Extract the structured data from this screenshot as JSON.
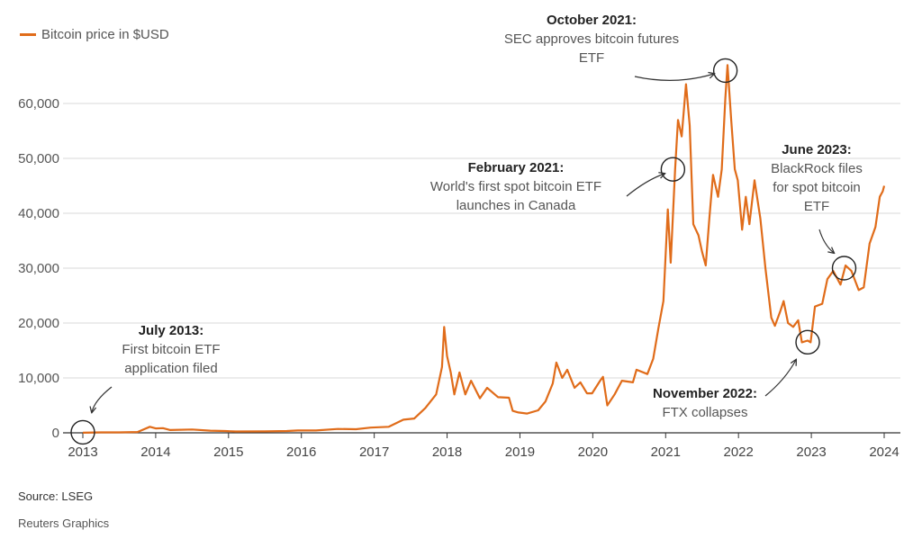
{
  "legend": {
    "label": "Bitcoin price in $USD"
  },
  "footer": {
    "source": "Source: LSEG",
    "credit": "Reuters Graphics"
  },
  "colors": {
    "line": "#e06c1a",
    "grid": "#d9d9d9",
    "axis": "#333333",
    "circle": "#222222"
  },
  "chart_data": {
    "type": "line",
    "title": "",
    "xlabel": "",
    "ylabel": "",
    "ylim": [
      0,
      60000
    ],
    "xlim": [
      2013,
      2024
    ],
    "yticks": [
      {
        "value": 0,
        "label": "0"
      },
      {
        "value": 10000,
        "label": "10,000"
      },
      {
        "value": 20000,
        "label": "20,000"
      },
      {
        "value": 30000,
        "label": "30,000"
      },
      {
        "value": 40000,
        "label": "40,000"
      },
      {
        "value": 50000,
        "label": "50,000"
      },
      {
        "value": 60000,
        "label": "60,000"
      }
    ],
    "xticks": [
      "2013",
      "2014",
      "2015",
      "2016",
      "2017",
      "2018",
      "2019",
      "2020",
      "2021",
      "2022",
      "2023",
      "2024"
    ],
    "grid": true,
    "legend_position": "top-left",
    "series": [
      {
        "name": "Bitcoin price in $USD",
        "points": [
          [
            2013.0,
            13
          ],
          [
            2013.25,
            90
          ],
          [
            2013.5,
            90
          ],
          [
            2013.75,
            140
          ],
          [
            2013.92,
            1100
          ],
          [
            2014.0,
            800
          ],
          [
            2014.1,
            850
          ],
          [
            2014.2,
            500
          ],
          [
            2014.5,
            600
          ],
          [
            2014.75,
            400
          ],
          [
            2014.95,
            320
          ],
          [
            2015.1,
            240
          ],
          [
            2015.5,
            260
          ],
          [
            2015.8,
            320
          ],
          [
            2015.95,
            430
          ],
          [
            2016.2,
            420
          ],
          [
            2016.5,
            700
          ],
          [
            2016.75,
            650
          ],
          [
            2016.95,
            950
          ],
          [
            2017.2,
            1100
          ],
          [
            2017.4,
            2400
          ],
          [
            2017.55,
            2600
          ],
          [
            2017.7,
            4500
          ],
          [
            2017.85,
            7000
          ],
          [
            2017.93,
            12000
          ],
          [
            2017.96,
            19300
          ],
          [
            2018.0,
            14000
          ],
          [
            2018.05,
            11000
          ],
          [
            2018.1,
            7000
          ],
          [
            2018.17,
            11000
          ],
          [
            2018.25,
            7000
          ],
          [
            2018.33,
            9500
          ],
          [
            2018.45,
            6300
          ],
          [
            2018.55,
            8200
          ],
          [
            2018.7,
            6500
          ],
          [
            2018.85,
            6400
          ],
          [
            2018.9,
            4000
          ],
          [
            2018.98,
            3700
          ],
          [
            2019.1,
            3500
          ],
          [
            2019.25,
            4100
          ],
          [
            2019.35,
            5700
          ],
          [
            2019.45,
            9000
          ],
          [
            2019.5,
            12800
          ],
          [
            2019.58,
            10000
          ],
          [
            2019.65,
            11500
          ],
          [
            2019.75,
            8200
          ],
          [
            2019.83,
            9200
          ],
          [
            2019.92,
            7200
          ],
          [
            2019.99,
            7200
          ],
          [
            2020.1,
            9500
          ],
          [
            2020.14,
            10200
          ],
          [
            2020.2,
            5000
          ],
          [
            2020.3,
            7000
          ],
          [
            2020.4,
            9500
          ],
          [
            2020.55,
            9200
          ],
          [
            2020.6,
            11500
          ],
          [
            2020.75,
            10700
          ],
          [
            2020.83,
            13500
          ],
          [
            2020.9,
            19000
          ],
          [
            2020.97,
            24000
          ],
          [
            2021.03,
            40700
          ],
          [
            2021.07,
            31000
          ],
          [
            2021.13,
            48000
          ],
          [
            2021.17,
            57000
          ],
          [
            2021.22,
            54000
          ],
          [
            2021.28,
            63500
          ],
          [
            2021.33,
            56000
          ],
          [
            2021.38,
            38000
          ],
          [
            2021.45,
            36000
          ],
          [
            2021.5,
            33000
          ],
          [
            2021.55,
            30500
          ],
          [
            2021.6,
            39000
          ],
          [
            2021.65,
            47000
          ],
          [
            2021.72,
            43000
          ],
          [
            2021.77,
            48000
          ],
          [
            2021.82,
            61000
          ],
          [
            2021.85,
            67000
          ],
          [
            2021.9,
            57000
          ],
          [
            2021.95,
            48000
          ],
          [
            2021.99,
            46000
          ],
          [
            2022.05,
            37000
          ],
          [
            2022.1,
            43000
          ],
          [
            2022.15,
            38000
          ],
          [
            2022.22,
            46000
          ],
          [
            2022.3,
            39000
          ],
          [
            2022.37,
            30000
          ],
          [
            2022.45,
            21000
          ],
          [
            2022.5,
            19500
          ],
          [
            2022.57,
            22000
          ],
          [
            2022.62,
            24000
          ],
          [
            2022.68,
            20000
          ],
          [
            2022.75,
            19300
          ],
          [
            2022.82,
            20500
          ],
          [
            2022.87,
            16500
          ],
          [
            2022.95,
            16800
          ],
          [
            2022.99,
            16500
          ],
          [
            2023.05,
            23000
          ],
          [
            2023.15,
            23500
          ],
          [
            2023.22,
            28000
          ],
          [
            2023.3,
            29500
          ],
          [
            2023.4,
            27000
          ],
          [
            2023.47,
            30500
          ],
          [
            2023.55,
            29500
          ],
          [
            2023.65,
            26000
          ],
          [
            2023.72,
            26500
          ],
          [
            2023.8,
            34500
          ],
          [
            2023.88,
            37500
          ],
          [
            2023.94,
            43000
          ],
          [
            2023.98,
            44000
          ],
          [
            2024.0,
            45000
          ]
        ]
      }
    ],
    "annotations": [
      {
        "title": "July 2013:",
        "lines": [
          "First bitcoin ETF",
          "application filed"
        ],
        "x": 2013.0,
        "y": 100
      },
      {
        "title": "February 2021:",
        "lines": [
          "World's first spot bitcoin ETF",
          "launches in Canada"
        ],
        "x": 2021.1,
        "y": 48000
      },
      {
        "title": "October 2021:",
        "lines": [
          "SEC approves bitcoin futures",
          "ETF"
        ],
        "x": 2021.82,
        "y": 66000
      },
      {
        "title": "November 2022:",
        "lines": [
          "FTX collapses"
        ],
        "x": 2022.95,
        "y": 16500
      },
      {
        "title": "June 2023:",
        "lines": [
          "BlackRock files",
          "for spot bitcoin",
          "ETF"
        ],
        "x": 2023.45,
        "y": 30000
      }
    ]
  }
}
